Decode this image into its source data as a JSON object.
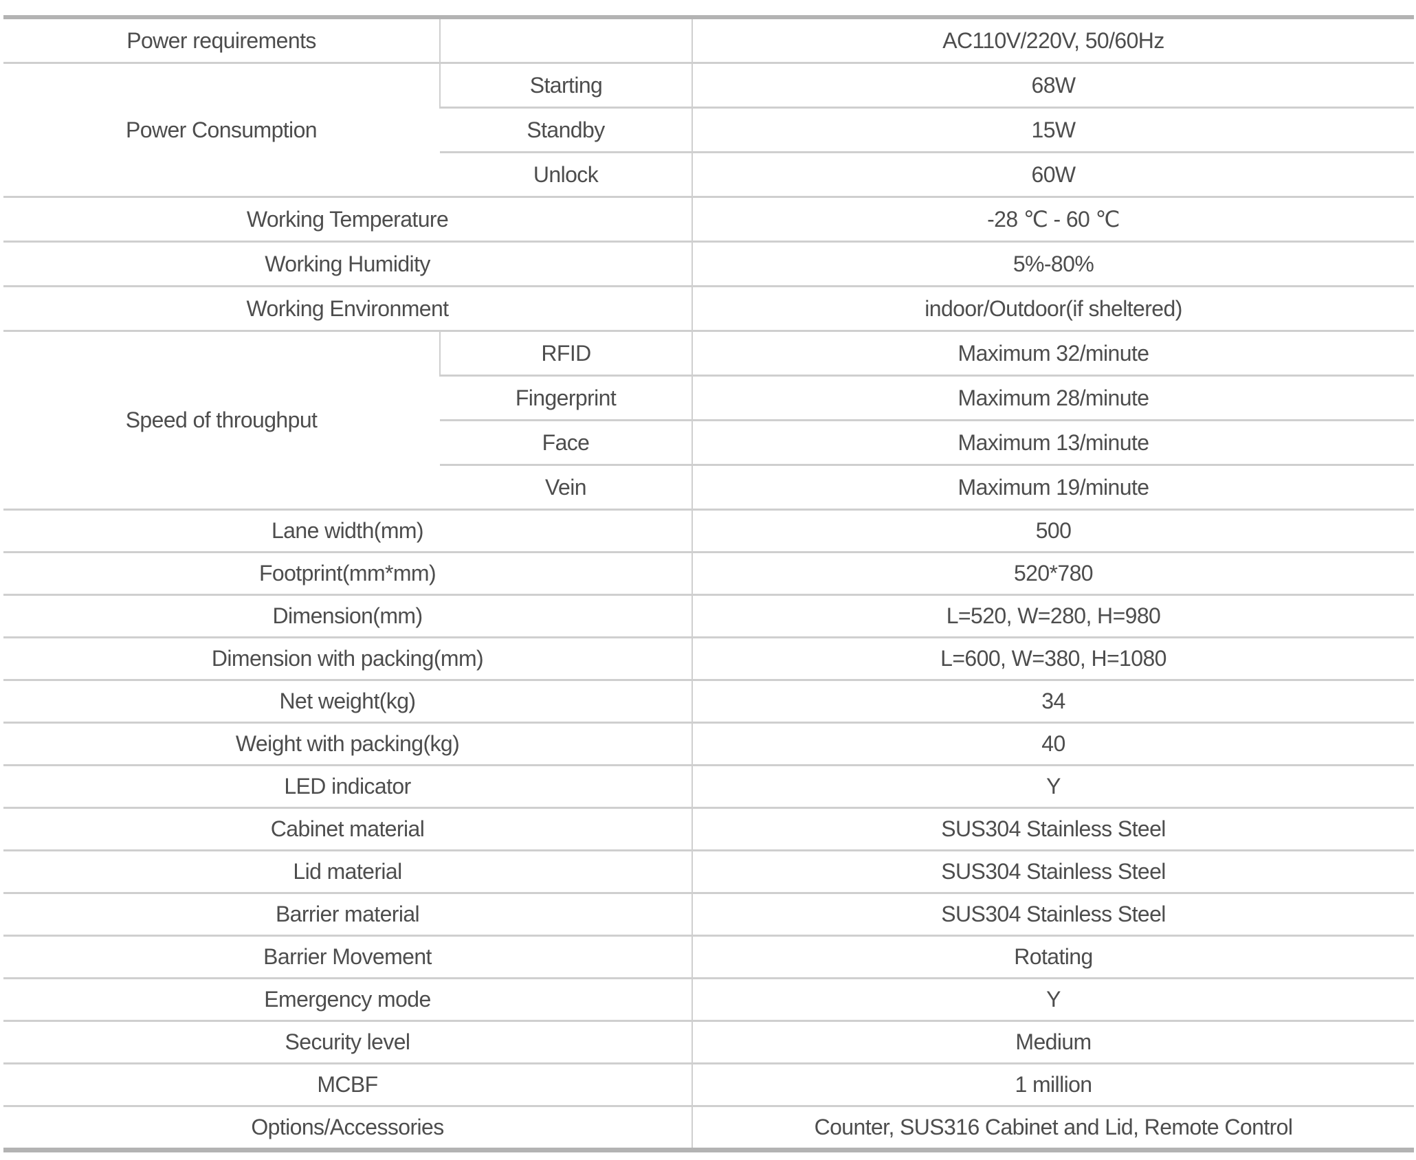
{
  "spec_table": {
    "power_requirements": {
      "label": "Power requirements",
      "sub": "",
      "value": "AC110V/220V, 50/60Hz"
    },
    "power_consumption": {
      "label": "Power Consumption",
      "rows": [
        {
          "sub": "Starting",
          "value": "68W"
        },
        {
          "sub": "Standby",
          "value": "15W"
        },
        {
          "sub": "Unlock",
          "value": "60W"
        }
      ]
    },
    "rows_a": [
      {
        "label": "Working Temperature",
        "value": "-28 ℃ - 60 ℃"
      },
      {
        "label": "Working Humidity",
        "value": "5%-80%"
      },
      {
        "label": "Working Environment",
        "value": "indoor/Outdoor(if sheltered)"
      }
    ],
    "throughput": {
      "label": "Speed of throughput",
      "rows": [
        {
          "sub": "RFID",
          "value": "Maximum 32/minute"
        },
        {
          "sub": "Fingerprint",
          "value": "Maximum 28/minute"
        },
        {
          "sub": "Face",
          "value": "Maximum 13/minute"
        },
        {
          "sub": "Vein",
          "value": "Maximum 19/minute"
        }
      ]
    },
    "rows_b": [
      {
        "label": "Lane width(mm)",
        "value": "500"
      },
      {
        "label": "Footprint(mm*mm)",
        "value": "520*780"
      },
      {
        "label": "Dimension(mm)",
        "value": "L=520, W=280, H=980"
      },
      {
        "label": "Dimension with packing(mm)",
        "value": "L=600, W=380, H=1080"
      },
      {
        "label": "Net weight(kg)",
        "value": "34"
      },
      {
        "label": "Weight with packing(kg)",
        "value": "40"
      },
      {
        "label": "LED indicator",
        "value": "Y"
      },
      {
        "label": "Cabinet material",
        "value": "SUS304 Stainless Steel"
      },
      {
        "label": "Lid material",
        "value": "SUS304 Stainless Steel"
      },
      {
        "label": "Barrier material",
        "value": "SUS304 Stainless Steel"
      },
      {
        "label": "Barrier Movement",
        "value": "Rotating"
      },
      {
        "label": "Emergency mode",
        "value": "Y"
      },
      {
        "label": "Security level",
        "value": "Medium"
      },
      {
        "label": "MCBF",
        "value": "1 million"
      },
      {
        "label": "Options/Accessories",
        "value": "Counter, SUS316 Cabinet and Lid, Remote Control"
      }
    ]
  }
}
